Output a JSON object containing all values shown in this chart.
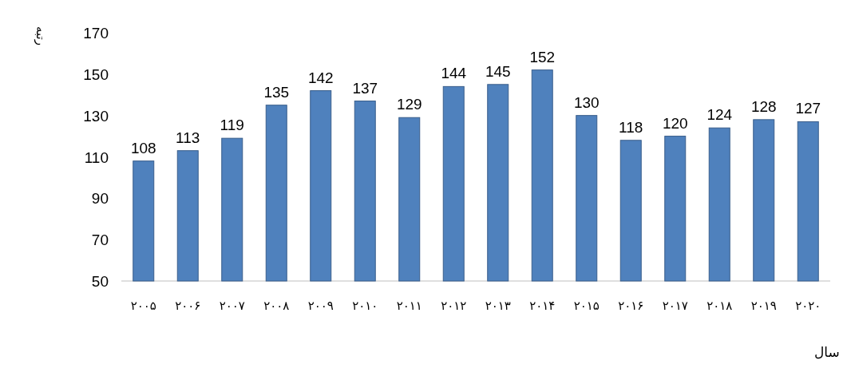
{
  "chart_data": {
    "type": "bar",
    "xlabel": "سال",
    "ylabel": "رتبه",
    "categories": [
      "۲۰۰۵",
      "۲۰۰۶",
      "۲۰۰۷",
      "۲۰۰۸",
      "۲۰۰۹",
      "۲۰۱۰",
      "۲۰۱۱",
      "۲۰۱۲",
      "۲۰۱۳",
      "۲۰۱۴",
      "۲۰۱۵",
      "۲۰۱۶",
      "۲۰۱۷",
      "۲۰۱۸",
      "۲۰۱۹",
      "۲۰۲۰"
    ],
    "values": [
      108,
      113,
      119,
      135,
      142,
      137,
      129,
      144,
      145,
      152,
      130,
      118,
      120,
      124,
      128,
      127
    ],
    "color": "#4f81bd",
    "ylim": [
      50,
      170
    ],
    "yticks": [
      50,
      70,
      90,
      110,
      130,
      150,
      170
    ],
    "data_labels": true,
    "grid": false
  }
}
